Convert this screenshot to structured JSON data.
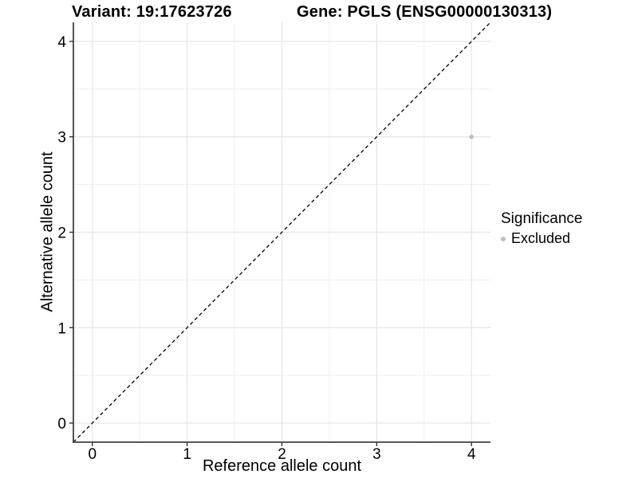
{
  "chart_data": {
    "type": "scatter",
    "title_left": "Variant: 19:17623726",
    "title_right": "Gene: PGLS (ENSG00000130313)",
    "xlabel": "Reference allele count",
    "ylabel": "Alternative allele count",
    "xlim": [
      -0.2,
      4.2
    ],
    "ylim": [
      -0.2,
      4.2
    ],
    "xticks": [
      0,
      1,
      2,
      3,
      4
    ],
    "yticks": [
      0,
      1,
      2,
      3,
      4
    ],
    "grid": {
      "major": true,
      "minor": true
    },
    "reference_line": {
      "type": "identity",
      "style": "dashed",
      "from": [
        -0.2,
        -0.2
      ],
      "to": [
        4.2,
        4.2
      ]
    },
    "series": [
      {
        "name": "Excluded",
        "color": "#bdbdbd",
        "points": [
          {
            "x": 4,
            "y": 3
          }
        ]
      }
    ],
    "legend": {
      "title": "Significance",
      "position": "right",
      "entries": [
        {
          "label": "Excluded",
          "color": "#bdbdbd",
          "marker": "circle-icon"
        }
      ]
    },
    "colors": {
      "background": "#ffffff",
      "axis_line": "#404040",
      "tick": "#333333",
      "major_grid": "#e5e5e5",
      "minor_grid": "#efefef",
      "reference_line": "#000000",
      "text": "#000000"
    }
  }
}
